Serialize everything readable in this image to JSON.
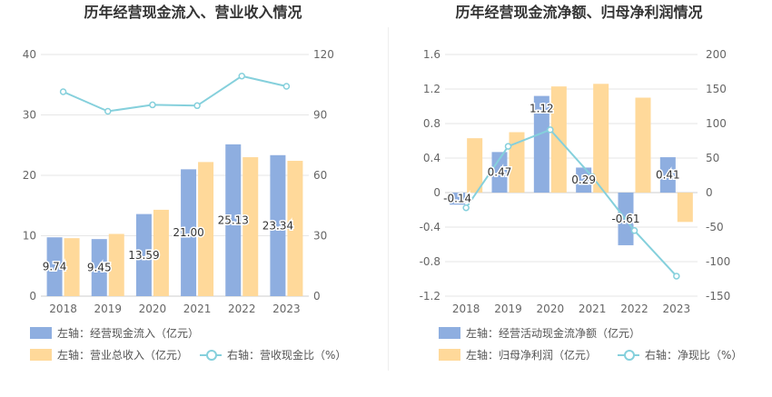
{
  "chart_data": [
    {
      "type": "bar",
      "title": "历年经营现金流入、营业收入情况",
      "categories": [
        "2018",
        "2019",
        "2020",
        "2021",
        "2022",
        "2023"
      ],
      "left_axis": {
        "min": 0,
        "max": 40,
        "ticks": [
          "0",
          "10",
          "20",
          "30",
          "40"
        ]
      },
      "right_axis": {
        "min": 0,
        "max": 120,
        "ticks": [
          "0",
          "30",
          "60",
          "90",
          "120"
        ]
      },
      "series": [
        {
          "name": "左轴：经营现金流入（亿元）",
          "type": "bar",
          "axis": "left",
          "color": "#8eaee0",
          "values": [
            9.74,
            9.45,
            13.59,
            21.0,
            25.13,
            23.34
          ],
          "labels": [
            "9.74",
            "9.45",
            "13.59",
            "21.00",
            "25.13",
            "23.34"
          ]
        },
        {
          "name": "左轴：营业总收入（亿元）",
          "type": "bar",
          "axis": "left",
          "color": "#ffd99a",
          "values": [
            9.6,
            10.3,
            14.3,
            22.2,
            23.0,
            22.4
          ]
        },
        {
          "name": "右轴：营收现金比（%）",
          "type": "line",
          "axis": "right",
          "color": "#85d0dc",
          "values": [
            101.5,
            91.8,
            95.0,
            94.6,
            109.3,
            104.2
          ]
        }
      ],
      "grid": true,
      "legend_position": "bottom-left"
    },
    {
      "type": "bar",
      "title": "历年经营现金流净额、归母净利润情况",
      "categories": [
        "2018",
        "2019",
        "2020",
        "2021",
        "2022",
        "2023"
      ],
      "left_axis": {
        "min": -1.2,
        "max": 1.6,
        "ticks": [
          "-1.2",
          "-0.8",
          "-0.4",
          "0",
          "0.4",
          "0.8",
          "1.2",
          "1.6"
        ]
      },
      "right_axis": {
        "min": -150,
        "max": 200,
        "ticks": [
          "-150",
          "-100",
          "-50",
          "0",
          "50",
          "100",
          "150",
          "200"
        ]
      },
      "series": [
        {
          "name": "左轴：经营活动现金流净额（亿元）",
          "type": "bar",
          "axis": "left",
          "color": "#8eaee0",
          "values": [
            -0.14,
            0.47,
            1.12,
            0.29,
            -0.61,
            0.41
          ],
          "labels": [
            "-0.14",
            "0.47",
            "1.12",
            "0.29",
            "-0.61",
            "0.41"
          ]
        },
        {
          "name": "左轴：归母净利润（亿元）",
          "type": "bar",
          "axis": "left",
          "color": "#ffd99a",
          "values": [
            0.63,
            0.7,
            1.23,
            1.26,
            1.1,
            -0.34
          ]
        },
        {
          "name": "右轴：净现比（%）",
          "type": "line",
          "axis": "right",
          "color": "#85d0dc",
          "values": [
            -22,
            67,
            91,
            23,
            -55,
            -121
          ]
        }
      ],
      "grid": true,
      "legend_position": "bottom-left"
    }
  ]
}
